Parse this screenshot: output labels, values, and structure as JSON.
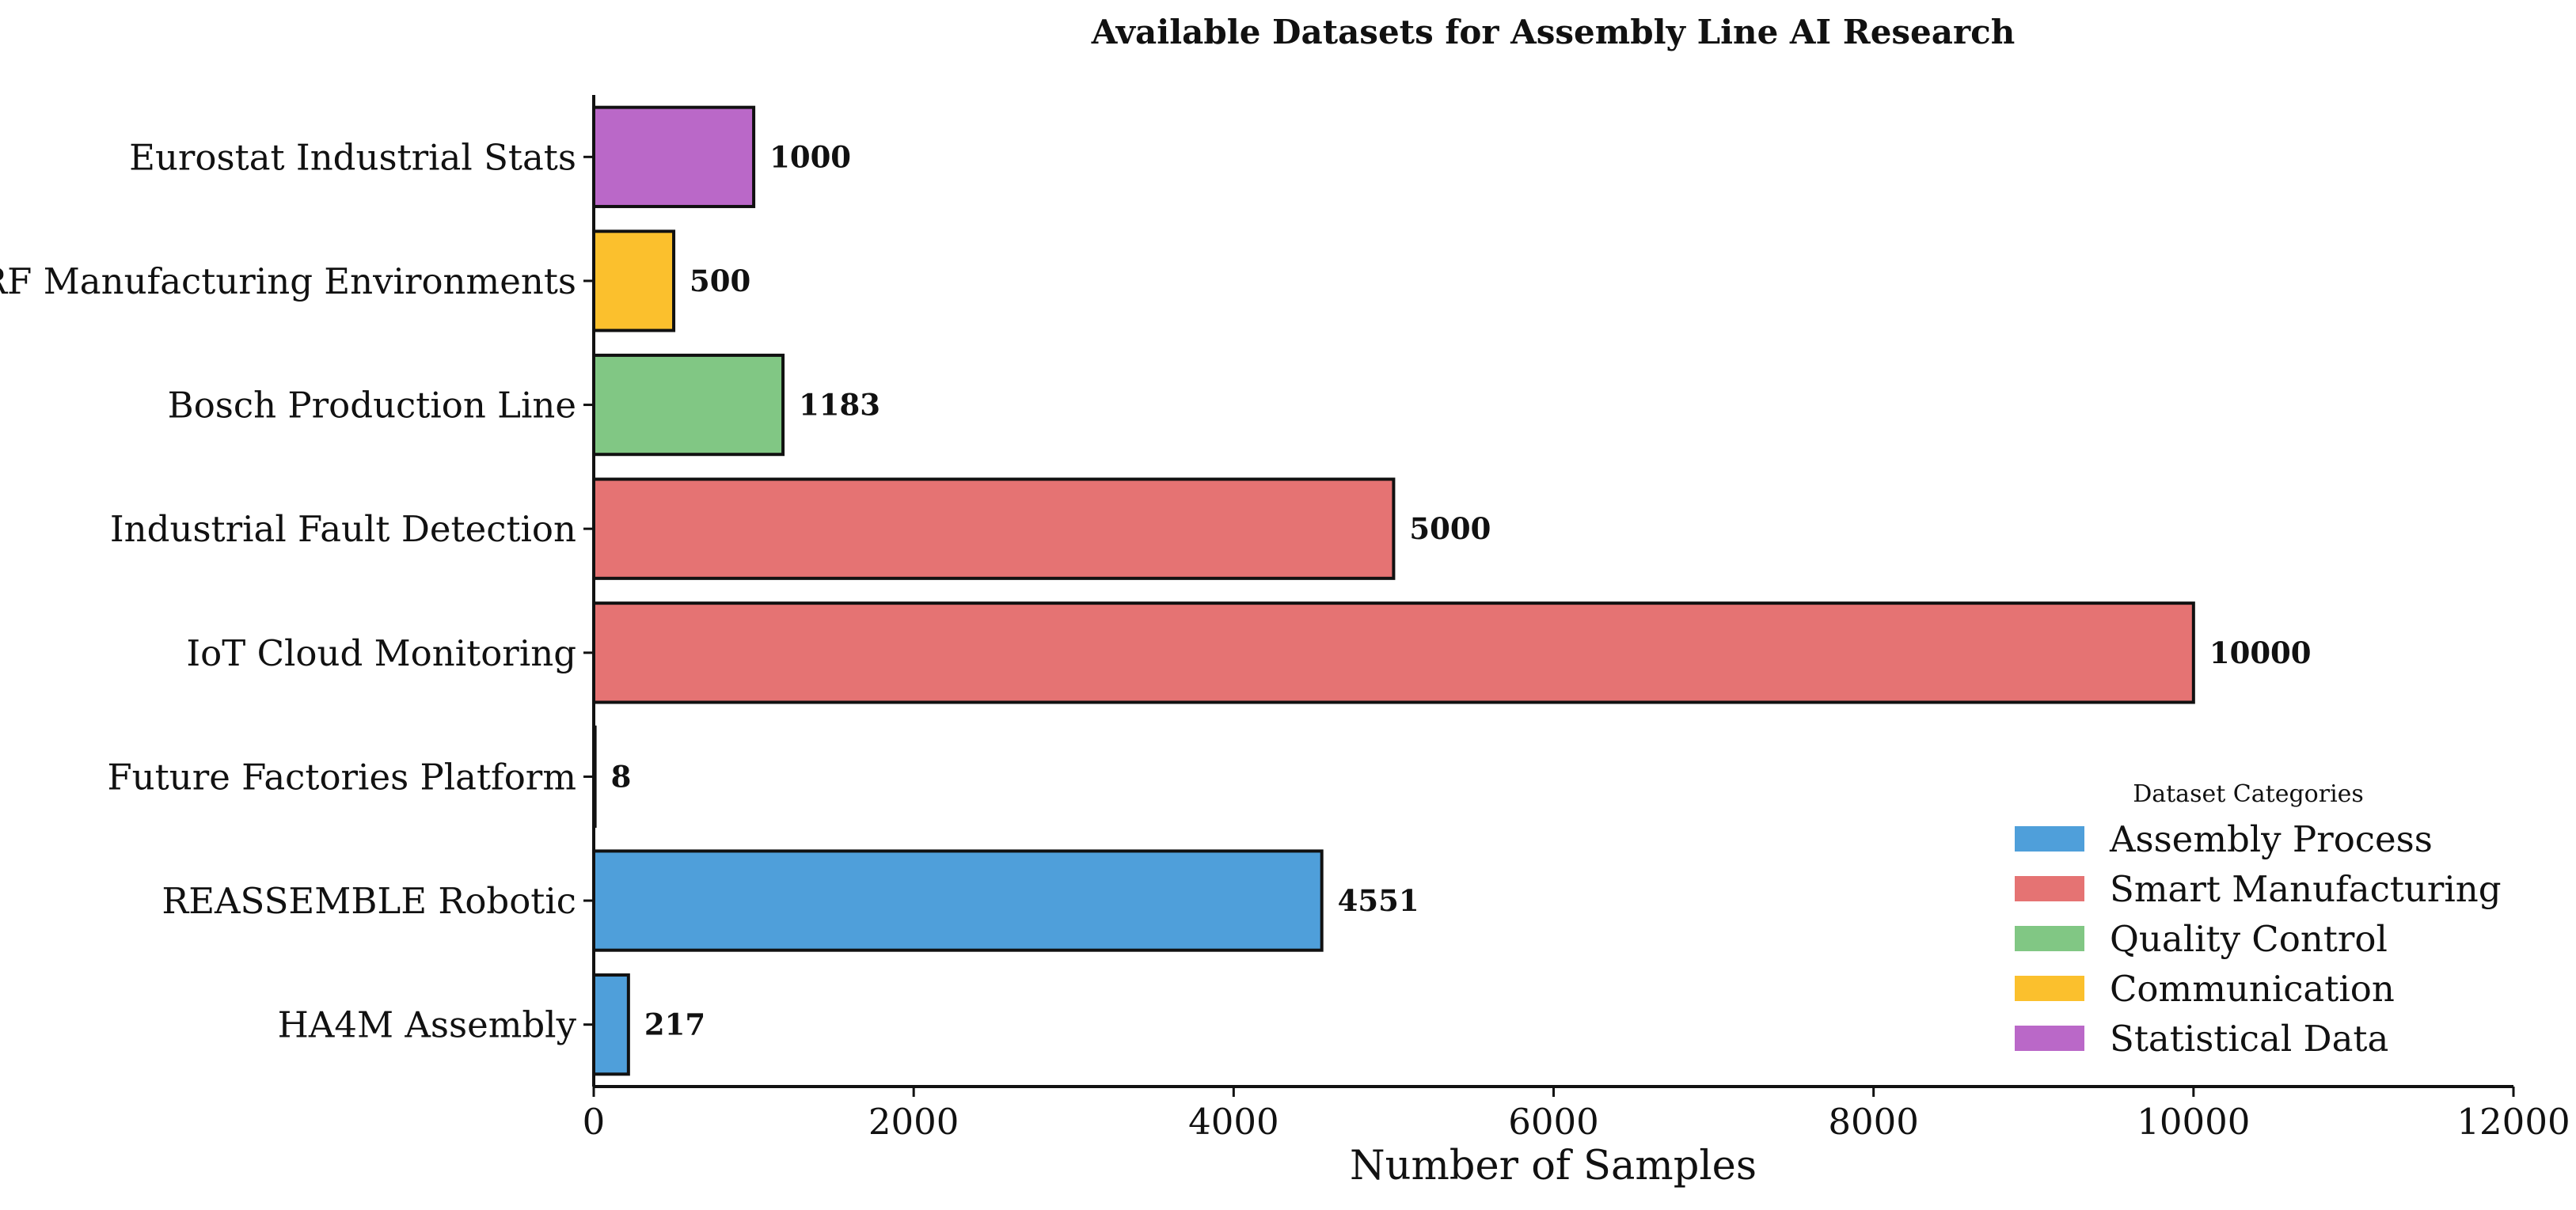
{
  "chart_data": {
    "type": "bar",
    "orientation": "horizontal",
    "title": "Available Datasets for Assembly Line AI Research",
    "xlabel": "Number of Samples",
    "ylabel": "",
    "xlim": [
      0,
      12000
    ],
    "xticks": [
      "0",
      "2000",
      "4000",
      "6000",
      "8000",
      "10000",
      "12000"
    ],
    "grid": false,
    "categories": [
      "HA4M Assembly",
      "REASSEMBLE Robotic",
      "Future Factories Platform",
      "IoT Cloud Monitoring",
      "Industrial Fault Detection",
      "Bosch Production Line",
      "RF Manufacturing Environments",
      "Eurostat Industrial Stats"
    ],
    "values": [
      217,
      4551,
      8,
      10000,
      5000,
      1183,
      500,
      1000
    ],
    "value_labels": [
      "217",
      "4551",
      "8",
      "10000",
      "5000",
      "1183",
      "500",
      "1000"
    ],
    "bar_categories": [
      "Assembly Process",
      "Assembly Process",
      "Assembly Process",
      "Smart Manufacturing",
      "Smart Manufacturing",
      "Quality Control",
      "Communication",
      "Statistical Data"
    ],
    "legend": {
      "title": "Dataset Categories",
      "placement": "lower-right",
      "entries": [
        {
          "label": "Assembly Process",
          "color": "#4f9fda"
        },
        {
          "label": "Smart Manufacturing",
          "color": "#e57373"
        },
        {
          "label": "Quality Control",
          "color": "#81c784"
        },
        {
          "label": "Communication",
          "color": "#fbc02d"
        },
        {
          "label": "Statistical Data",
          "color": "#ba68c8"
        }
      ]
    }
  }
}
